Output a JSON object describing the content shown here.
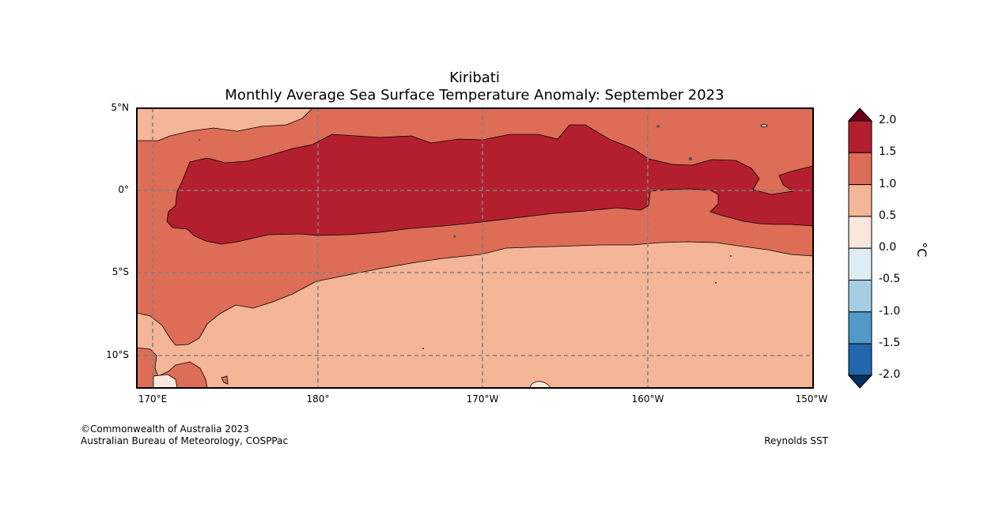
{
  "title": "Kiribati",
  "subtitle": "Monthly Average Sea Surface Temperature Anomaly: September 2023",
  "axes": {
    "lat_labels": [
      "5°N",
      "0°",
      "5°S",
      "10°S"
    ],
    "lon_labels": [
      "170°E",
      "180°",
      "170°W",
      "160°W",
      "150°W"
    ]
  },
  "colorbar": {
    "unit": "°C",
    "ticks": [
      "2.0",
      "1.5",
      "1.0",
      "0.5",
      "0.0",
      "-0.5",
      "-1.0",
      "-1.5",
      "-2.0"
    ],
    "colors": {
      "above_max": "#67001f",
      "1.5_to_2.0": "#b41f2f",
      "1.0_to_1.5": "#dd6d56",
      "0.5_to_1.0": "#f5b697",
      "0.0_to_0.5": "#f9e6dc",
      "-0.5_to_0.0": "#deecf3",
      "-1.0_to_-0.5": "#a6cee2",
      "-1.5_to_-1.0": "#5199c6",
      "-2.0_to_-1.5": "#2266ad",
      "below_min": "#062e61"
    }
  },
  "footer": {
    "copyright": "©Commonwealth of Australia 2023",
    "agency": "Australian Bureau of Meteorology, COSPPac",
    "source": "Reynolds SST"
  }
}
